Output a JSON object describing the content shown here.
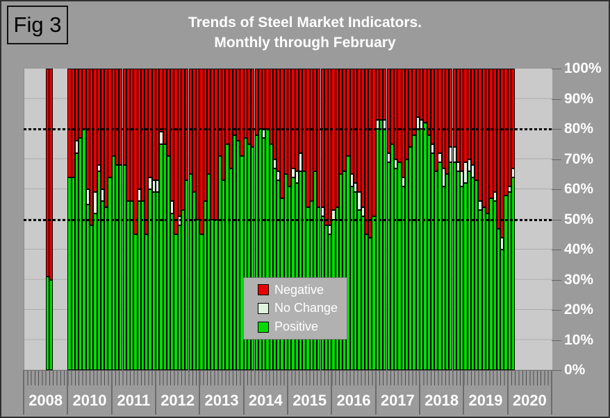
{
  "figure_label": "Fig 3",
  "title_line1": "Trends of Steel Market Indicators.",
  "title_line2": "Monthly through February",
  "legend": {
    "items": [
      {
        "key": "negative",
        "label": "Negative"
      },
      {
        "key": "no_change",
        "label": "No Change"
      },
      {
        "key": "positive",
        "label": "Positive"
      }
    ]
  },
  "colors": {
    "negative": "#E80000",
    "no_change": "#DFF3DF",
    "positive": "#00DC00",
    "page_bg": "#9B9B9B",
    "plot_bg": "#CACACA",
    "text": "#FFFFFF"
  },
  "y_axis": {
    "labels": [
      "100%",
      "90%",
      "80%",
      "70%",
      "60%",
      "50%",
      "40%",
      "30%",
      "20%",
      "10%",
      "0%"
    ],
    "max_pct": 100,
    "step_pct": 10
  },
  "x_axis": {
    "year_labels": [
      "2008",
      "2010",
      "2011",
      "2012",
      "2013",
      "2014",
      "2015",
      "2016",
      "2017",
      "2018",
      "2019",
      "2020"
    ]
  },
  "chart_data": {
    "type": "bar",
    "stacking": "percent-stacked",
    "ylim": [
      0,
      100
    ],
    "dotted_reference_lines_pct": [
      80,
      50
    ],
    "bar_format": "[positive_pct, no_change_pct]; negative_pct = 100 - positive_pct - no_change_pct",
    "series_order_bottom_to_top": [
      "positive",
      "no_change",
      "negative"
    ],
    "years": [
      {
        "label": "2008",
        "first_month_slot": 6,
        "bars": [
          [
            31,
            0
          ],
          [
            30,
            0
          ]
        ]
      },
      {
        "label": "2010",
        "first_month_slot": 0,
        "bars": [
          [
            64,
            0
          ],
          [
            64,
            0
          ],
          [
            72,
            4
          ],
          [
            77,
            0
          ],
          [
            80,
            0
          ],
          [
            55,
            5
          ],
          [
            48,
            0
          ],
          [
            52,
            7
          ],
          [
            66,
            2
          ],
          [
            56,
            4
          ],
          [
            54,
            0
          ],
          [
            64,
            0
          ]
        ]
      },
      {
        "label": "2011",
        "first_month_slot": 0,
        "bars": [
          [
            71,
            0
          ],
          [
            68,
            0
          ],
          [
            68,
            0
          ],
          [
            68,
            0
          ],
          [
            56,
            0
          ],
          [
            56,
            0
          ],
          [
            45,
            0
          ],
          [
            56,
            4
          ],
          [
            56,
            0
          ],
          [
            45,
            0
          ],
          [
            60,
            4
          ],
          [
            59,
            4
          ]
        ]
      },
      {
        "label": "2012",
        "first_month_slot": 0,
        "bars": [
          [
            59,
            4
          ],
          [
            75,
            4
          ],
          [
            75,
            0
          ],
          [
            71,
            0
          ],
          [
            52,
            4
          ],
          [
            45,
            0
          ],
          [
            48,
            3
          ],
          [
            53,
            0
          ],
          [
            63,
            0
          ],
          [
            65,
            0
          ],
          [
            59,
            0
          ],
          [
            50,
            0
          ]
        ]
      },
      {
        "label": "2013",
        "first_month_slot": 0,
        "bars": [
          [
            45,
            0
          ],
          [
            56,
            0
          ],
          [
            65,
            0
          ],
          [
            50,
            0
          ],
          [
            50,
            0
          ],
          [
            71,
            0
          ],
          [
            63,
            0
          ],
          [
            75,
            0
          ],
          [
            67,
            0
          ],
          [
            78,
            0
          ],
          [
            76,
            0
          ],
          [
            71,
            0
          ]
        ]
      },
      {
        "label": "2014",
        "first_month_slot": 0,
        "bars": [
          [
            77,
            0
          ],
          [
            75,
            0
          ],
          [
            74,
            0
          ],
          [
            78,
            0
          ],
          [
            80,
            0
          ],
          [
            77,
            3
          ],
          [
            80,
            0
          ],
          [
            75,
            0
          ],
          [
            67,
            3
          ],
          [
            63,
            3
          ],
          [
            57,
            0
          ],
          [
            65,
            0
          ]
        ]
      },
      {
        "label": "2015",
        "first_month_slot": 0,
        "bars": [
          [
            61,
            0
          ],
          [
            64,
            3
          ],
          [
            62,
            4
          ],
          [
            66,
            6
          ],
          [
            66,
            0
          ],
          [
            54,
            0
          ],
          [
            56,
            0
          ],
          [
            66,
            0
          ],
          [
            54,
            0
          ],
          [
            51,
            3
          ],
          [
            48,
            0
          ],
          [
            45,
            3
          ]
        ]
      },
      {
        "label": "2016",
        "first_month_slot": 0,
        "bars": [
          [
            50,
            3
          ],
          [
            54,
            0
          ],
          [
            65,
            0
          ],
          [
            66,
            0
          ],
          [
            71,
            0
          ],
          [
            61,
            4
          ],
          [
            59,
            3
          ],
          [
            53,
            6
          ],
          [
            51,
            3
          ],
          [
            45,
            0
          ],
          [
            44,
            0
          ],
          [
            51,
            0
          ]
        ]
      },
      {
        "label": "2017",
        "first_month_slot": 0,
        "bars": [
          [
            80,
            3
          ],
          [
            83,
            0
          ],
          [
            80,
            3
          ],
          [
            69,
            3
          ],
          [
            75,
            0
          ],
          [
            67,
            3
          ],
          [
            69,
            0
          ],
          [
            61,
            3
          ],
          [
            70,
            0
          ],
          [
            74,
            0
          ],
          [
            78,
            0
          ],
          [
            80,
            4
          ]
        ]
      },
      {
        "label": "2018",
        "first_month_slot": 0,
        "bars": [
          [
            80,
            3
          ],
          [
            82,
            0
          ],
          [
            78,
            0
          ],
          [
            72,
            3
          ],
          [
            66,
            0
          ],
          [
            69,
            3
          ],
          [
            61,
            6
          ],
          [
            65,
            0
          ],
          [
            69,
            5
          ],
          [
            69,
            5
          ],
          [
            66,
            3
          ],
          [
            61,
            5
          ]
        ]
      },
      {
        "label": "2019",
        "first_month_slot": 0,
        "bars": [
          [
            62,
            7
          ],
          [
            66,
            4
          ],
          [
            64,
            4
          ],
          [
            63,
            0
          ],
          [
            53,
            3
          ],
          [
            54,
            0
          ],
          [
            52,
            0
          ],
          [
            57,
            0
          ],
          [
            56,
            3
          ],
          [
            47,
            0
          ],
          [
            40,
            4
          ],
          [
            58,
            0
          ]
        ]
      },
      {
        "label": "2020",
        "first_month_slot": 0,
        "bars": [
          [
            59,
            2
          ],
          [
            64,
            3
          ]
        ]
      }
    ]
  }
}
